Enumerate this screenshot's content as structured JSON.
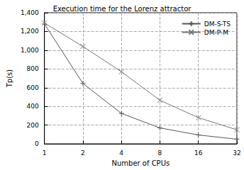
{
  "chart_data": {
    "type": "line",
    "title": "Execution time for the Lorenz attractor",
    "x_label": "Number of CPUs",
    "y_label": "Tp(s)",
    "x": [
      1,
      2,
      4,
      8,
      16,
      32
    ],
    "series": [
      {
        "name": "DM-S-TS",
        "color": "#555555",
        "marker": "plus",
        "line_style": "solid",
        "values": [
          1280,
          645,
          325,
          170,
          95,
          50
        ]
      },
      {
        "name": "DM-P-M",
        "color": "#777777",
        "marker": "cross",
        "line_style": "solid",
        "values": [
          1290,
          1040,
          770,
          465,
          280,
          150
        ]
      }
    ],
    "xlim": [
      1,
      32
    ],
    "xticks": [
      1,
      2,
      4,
      8,
      16,
      32
    ],
    "ylim": [
      0,
      1400
    ],
    "yticks": [
      0,
      200,
      400,
      600,
      800,
      1000,
      1200,
      1400
    ],
    "log": "x",
    "grid": true,
    "legend": "upper right"
  }
}
